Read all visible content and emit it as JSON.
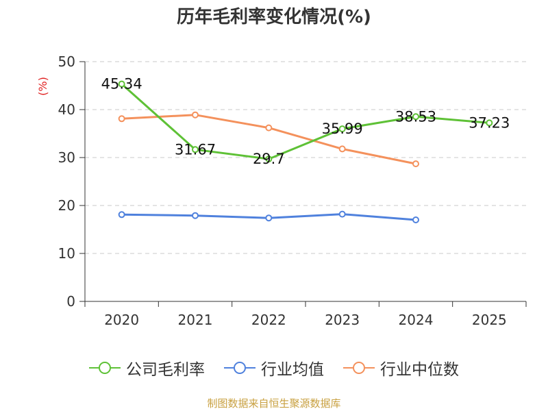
{
  "chart_data": {
    "type": "line",
    "title": "历年毛利率变化情况(%)",
    "ylabel": "(%)",
    "xlabel": "",
    "ylim": [
      0,
      50
    ],
    "yticks": [
      0,
      10,
      20,
      30,
      40,
      50
    ],
    "grid": "horizontal-dashed",
    "legend_position": "bottom",
    "categories": [
      "2020",
      "2021",
      "2022",
      "2023",
      "2024",
      "2025"
    ],
    "series": [
      {
        "name": "公司毛利率",
        "color": "#5ec136",
        "values": [
          45.34,
          31.67,
          29.7,
          35.99,
          38.53,
          37.23
        ],
        "labels": [
          "45.34",
          "31.67",
          "29.7",
          "35.99",
          "38.53",
          "37.23"
        ]
      },
      {
        "name": "行业均值",
        "color": "#4f81dd",
        "values": [
          18.1,
          17.9,
          17.4,
          18.2,
          17.0,
          null
        ]
      },
      {
        "name": "行业中位数",
        "color": "#f4915c",
        "values": [
          38.1,
          38.9,
          36.2,
          31.8,
          28.7,
          null
        ]
      }
    ]
  },
  "footer": {
    "source": "制图数据来自恒生聚源数据库"
  }
}
